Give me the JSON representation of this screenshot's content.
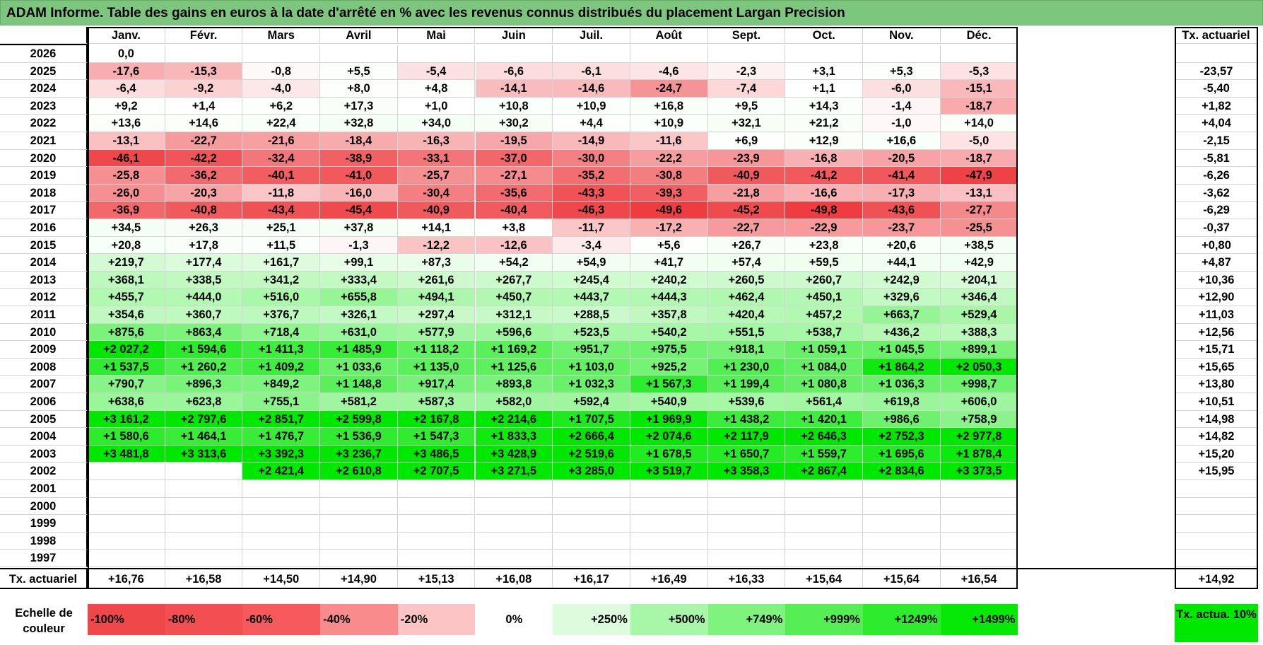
{
  "title": "ADAM Informe. Table des gains en euros à la date d'arrêté en % avec les revenus connus distribués du placement Largan Precision",
  "months": [
    "Janv.",
    "Févr.",
    "Mars",
    "Avril",
    "Mai",
    "Juin",
    "Juil.",
    "Août",
    "Sept.",
    "Oct.",
    "Nov.",
    "Déc."
  ],
  "rate_header": "Tx. actuariel",
  "rows": [
    {
      "year": "2026",
      "values": [
        "0,0",
        "",
        "",
        "",
        "",
        "",
        "",
        "",
        "",
        "",
        "",
        ""
      ],
      "rate": ""
    },
    {
      "year": "2025",
      "values": [
        "-17,6",
        "-15,3",
        "-0,8",
        "+5,5",
        "-5,4",
        "-6,6",
        "-6,1",
        "-4,6",
        "-2,3",
        "+3,1",
        "+5,3",
        "-5,3"
      ],
      "rate": "-23,57"
    },
    {
      "year": "2024",
      "values": [
        "-6,4",
        "-9,2",
        "-4,0",
        "+8,0",
        "+4,8",
        "-14,1",
        "-14,6",
        "-24,7",
        "-7,4",
        "+1,1",
        "-6,0",
        "-15,1"
      ],
      "rate": "-5,40"
    },
    {
      "year": "2023",
      "values": [
        "+9,2",
        "+1,4",
        "+6,2",
        "+17,3",
        "+1,0",
        "+10,8",
        "+10,9",
        "+16,8",
        "+9,5",
        "+14,3",
        "-1,4",
        "-18,7"
      ],
      "rate": "+1,82"
    },
    {
      "year": "2022",
      "values": [
        "+13,6",
        "+14,6",
        "+22,4",
        "+32,8",
        "+34,0",
        "+30,2",
        "+4,4",
        "+10,9",
        "+32,1",
        "+21,2",
        "-1,0",
        "+14,0"
      ],
      "rate": "+4,04"
    },
    {
      "year": "2021",
      "values": [
        "-13,1",
        "-22,7",
        "-21,6",
        "-18,4",
        "-16,3",
        "-19,5",
        "-14,9",
        "-11,6",
        "+6,9",
        "+12,9",
        "+16,6",
        "-5,0"
      ],
      "rate": "-2,15"
    },
    {
      "year": "2020",
      "values": [
        "-46,1",
        "-42,2",
        "-32,4",
        "-38,9",
        "-33,1",
        "-37,0",
        "-30,0",
        "-22,2",
        "-23,9",
        "-16,8",
        "-20,5",
        "-18,7"
      ],
      "rate": "-5,81"
    },
    {
      "year": "2019",
      "values": [
        "-25,8",
        "-36,2",
        "-40,1",
        "-41,0",
        "-25,7",
        "-27,1",
        "-35,2",
        "-30,8",
        "-40,9",
        "-41,2",
        "-41,4",
        "-47,9"
      ],
      "rate": "-6,26"
    },
    {
      "year": "2018",
      "values": [
        "-26,0",
        "-20,3",
        "-11,8",
        "-16,0",
        "-30,4",
        "-35,6",
        "-43,3",
        "-39,3",
        "-21,8",
        "-16,6",
        "-17,3",
        "-13,1"
      ],
      "rate": "-3,62"
    },
    {
      "year": "2017",
      "values": [
        "-36,9",
        "-40,8",
        "-43,4",
        "-45,4",
        "-40,9",
        "-40,4",
        "-46,3",
        "-49,6",
        "-45,2",
        "-49,8",
        "-43,6",
        "-27,7"
      ],
      "rate": "-6,29"
    },
    {
      "year": "2016",
      "values": [
        "+34,5",
        "+26,3",
        "+25,1",
        "+37,8",
        "+14,1",
        "+3,8",
        "-11,7",
        "-17,2",
        "-22,7",
        "-22,9",
        "-23,7",
        "-25,5"
      ],
      "rate": "-0,37"
    },
    {
      "year": "2015",
      "values": [
        "+20,8",
        "+17,8",
        "+11,5",
        "-1,3",
        "-12,2",
        "-12,6",
        "-3,4",
        "+5,6",
        "+26,7",
        "+23,8",
        "+20,6",
        "+38,5"
      ],
      "rate": "+0,80"
    },
    {
      "year": "2014",
      "values": [
        "+219,7",
        "+177,4",
        "+161,7",
        "+99,1",
        "+87,3",
        "+54,2",
        "+54,9",
        "+41,7",
        "+57,4",
        "+59,5",
        "+44,1",
        "+42,9"
      ],
      "rate": "+4,87"
    },
    {
      "year": "2013",
      "values": [
        "+368,1",
        "+338,5",
        "+341,2",
        "+333,4",
        "+261,6",
        "+267,7",
        "+245,4",
        "+240,2",
        "+260,5",
        "+260,7",
        "+242,9",
        "+204,1"
      ],
      "rate": "+10,36"
    },
    {
      "year": "2012",
      "values": [
        "+455,7",
        "+444,0",
        "+516,0",
        "+655,8",
        "+494,1",
        "+450,7",
        "+443,7",
        "+444,3",
        "+462,4",
        "+450,1",
        "+329,6",
        "+346,4"
      ],
      "rate": "+12,90"
    },
    {
      "year": "2011",
      "values": [
        "+354,6",
        "+360,7",
        "+376,7",
        "+326,1",
        "+297,4",
        "+312,1",
        "+288,5",
        "+357,8",
        "+420,4",
        "+457,2",
        "+663,7",
        "+529,4"
      ],
      "rate": "+11,03"
    },
    {
      "year": "2010",
      "values": [
        "+875,6",
        "+863,4",
        "+718,4",
        "+631,0",
        "+577,9",
        "+596,6",
        "+523,5",
        "+540,2",
        "+551,5",
        "+538,7",
        "+436,2",
        "+388,3"
      ],
      "rate": "+12,56"
    },
    {
      "year": "2009",
      "values": [
        "+2 027,2",
        "+1 594,6",
        "+1 411,3",
        "+1 485,9",
        "+1 118,2",
        "+1 169,2",
        "+951,7",
        "+975,5",
        "+918,1",
        "+1 059,1",
        "+1 045,5",
        "+899,1"
      ],
      "rate": "+15,71"
    },
    {
      "year": "2008",
      "values": [
        "+1 537,5",
        "+1 260,2",
        "+1 409,2",
        "+1 033,6",
        "+1 135,0",
        "+1 125,6",
        "+1 103,0",
        "+925,2",
        "+1 230,0",
        "+1 084,0",
        "+1 864,2",
        "+2 050,3"
      ],
      "rate": "+15,65"
    },
    {
      "year": "2007",
      "values": [
        "+790,7",
        "+896,3",
        "+849,2",
        "+1 148,8",
        "+917,4",
        "+893,8",
        "+1 032,3",
        "+1 567,3",
        "+1 199,4",
        "+1 080,8",
        "+1 036,3",
        "+998,7"
      ],
      "rate": "+13,80"
    },
    {
      "year": "2006",
      "values": [
        "+638,6",
        "+623,8",
        "+755,1",
        "+581,2",
        "+587,3",
        "+582,0",
        "+592,4",
        "+540,9",
        "+539,6",
        "+561,4",
        "+619,8",
        "+606,0"
      ],
      "rate": "+10,51"
    },
    {
      "year": "2005",
      "values": [
        "+3 161,2",
        "+2 797,6",
        "+2 851,7",
        "+2 599,8",
        "+2 167,8",
        "+2 214,6",
        "+1 707,5",
        "+1 969,9",
        "+1 438,2",
        "+1 420,1",
        "+986,6",
        "+758,9"
      ],
      "rate": "+14,98"
    },
    {
      "year": "2004",
      "values": [
        "+1 580,6",
        "+1 464,1",
        "+1 476,7",
        "+1 536,9",
        "+1 547,3",
        "+1 833,3",
        "+2 666,4",
        "+2 074,6",
        "+2 117,9",
        "+2 646,3",
        "+2 752,3",
        "+2 977,8"
      ],
      "rate": "+14,82"
    },
    {
      "year": "2003",
      "values": [
        "+3 481,8",
        "+3 313,6",
        "+3 392,3",
        "+3 236,7",
        "+3 486,5",
        "+3 428,9",
        "+2 519,6",
        "+1 678,5",
        "+1 650,7",
        "+1 559,7",
        "+1 695,6",
        "+1 878,4"
      ],
      "rate": "+15,20"
    },
    {
      "year": "2002",
      "values": [
        "",
        "",
        "+2 421,4",
        "+2 610,8",
        "+2 707,5",
        "+3 271,5",
        "+3 285,0",
        "+3 519,7",
        "+3 358,3",
        "+2 867,4",
        "+2 834,6",
        "+3 373,5"
      ],
      "rate": "+15,95"
    },
    {
      "year": "2001",
      "values": [
        "",
        "",
        "",
        "",
        "",
        "",
        "",
        "",
        "",
        "",
        "",
        ""
      ],
      "rate": ""
    },
    {
      "year": "2000",
      "values": [
        "",
        "",
        "",
        "",
        "",
        "",
        "",
        "",
        "",
        "",
        "",
        ""
      ],
      "rate": ""
    },
    {
      "year": "1999",
      "values": [
        "",
        "",
        "",
        "",
        "",
        "",
        "",
        "",
        "",
        "",
        "",
        ""
      ],
      "rate": ""
    },
    {
      "year": "1998",
      "values": [
        "",
        "",
        "",
        "",
        "",
        "",
        "",
        "",
        "",
        "",
        "",
        ""
      ],
      "rate": ""
    },
    {
      "year": "1997",
      "values": [
        "",
        "",
        "",
        "",
        "",
        "",
        "",
        "",
        "",
        "",
        "",
        ""
      ],
      "rate": ""
    }
  ],
  "footer": {
    "label": "Tx. actuariel",
    "values": [
      "+16,76",
      "+16,58",
      "+14,50",
      "+14,90",
      "+15,13",
      "+16,08",
      "+16,17",
      "+16,49",
      "+16,33",
      "+15,64",
      "+15,64",
      "+16,54"
    ],
    "overall": "+14,92"
  },
  "legend": {
    "label": "Echelle de couleur",
    "items": [
      {
        "text": "-100%",
        "color": "#f0474b",
        "align": "left"
      },
      {
        "text": "-80%",
        "color": "#f34e52",
        "align": "left"
      },
      {
        "text": "-60%",
        "color": "#f65a5d",
        "align": "left"
      },
      {
        "text": "-40%",
        "color": "#f98b8c",
        "align": "left"
      },
      {
        "text": "-20%",
        "color": "#fcc4c5",
        "align": "left"
      },
      {
        "text": "0%",
        "color": "#ffffff",
        "align": "center"
      },
      {
        "text": "+250%",
        "color": "#ddfcdd",
        "align": "right"
      },
      {
        "text": "+500%",
        "color": "#a8f7a8",
        "align": "right"
      },
      {
        "text": "+749%",
        "color": "#7ef37e",
        "align": "right"
      },
      {
        "text": "+999%",
        "color": "#55ef55",
        "align": "right"
      },
      {
        "text": "+1249%",
        "color": "#2deb2d",
        "align": "right"
      },
      {
        "text": "+1499%",
        "color": "#06e806",
        "align": "right"
      }
    ],
    "reference": "Tx. actua. 10%",
    "reference_color": "#00e800"
  },
  "colors": {
    "title_bar": "#7dc67d",
    "negative_max": "#f0474b",
    "positive_max": "#00e800"
  }
}
